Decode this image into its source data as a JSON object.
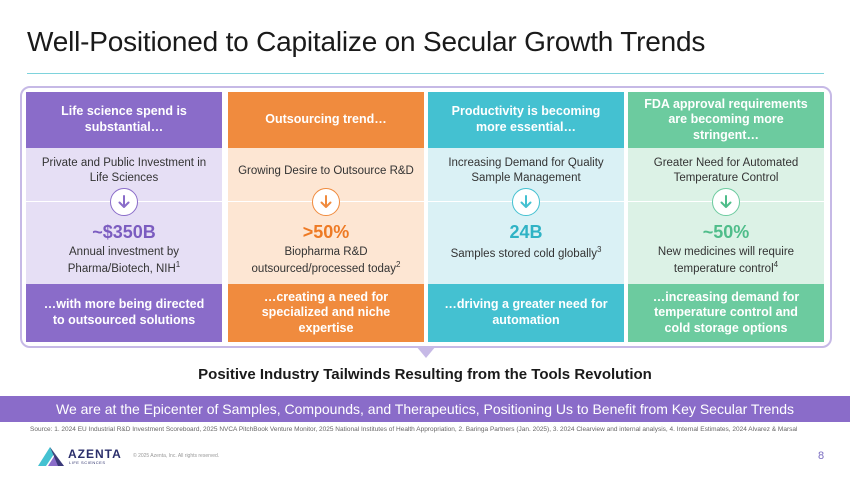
{
  "title": "Well-Positioned to Capitalize on Secular Growth Trends",
  "columns": [
    {
      "header": "Life science spend is substantial…",
      "subtitle": "Private and Public Investment in Life Sciences",
      "stat": "~$350B",
      "stat_desc": "Annual investment by Pharma/Biotech, NIH",
      "footnote": "1",
      "footer": "…with more being directed to outsourced solutions",
      "accent": "#8a6cc9",
      "light": "#e6dff5"
    },
    {
      "header": "Outsourcing trend…",
      "subtitle": "Growing Desire to Outsource R&D",
      "stat": ">50%",
      "stat_desc": "Biopharma R&D outsourced/processed today",
      "footnote": "2",
      "footer": "…creating a need for specialized and niche expertise",
      "accent": "#f08b3e",
      "light": "#fde6d3"
    },
    {
      "header": "Productivity is becoming more essential…",
      "subtitle": "Increasing Demand for Quality Sample Management",
      "stat": "24B",
      "stat_desc": "Samples stored cold globally",
      "footnote": "3",
      "footer": "…driving a greater need for automation",
      "accent": "#44c1d1",
      "light": "#daf1f5"
    },
    {
      "header": "FDA approval requirements are becoming more stringent…",
      "subtitle": "Greater Need for Automated Temperature Control",
      "stat": "~50%",
      "stat_desc": "New medicines will require temperature control",
      "footnote": "4",
      "footer": "…increasing demand for temperature control and cold storage options",
      "accent": "#6ccb9f",
      "light": "#dcf2e6"
    }
  ],
  "tagline": "Positive Industry Tailwinds Resulting from the Tools Revolution",
  "banner": "We are at the Epicenter of Samples, Compounds, and Therapeutics, Positioning Us to Benefit from Key Secular Trends",
  "source": "Source: 1. 2024 EU Industrial R&D Investment Scoreboard, 2025 NVCA PitchBook Venture Monitor, 2025 National Institutes of Health Appropriation, 2. Baringa Partners (Jan. 2025), 3. 2024 Clearview and internal analysis, 4. Internal Estimates, 2024 Alvarez & Marsal",
  "logo": {
    "name": "AZENTA",
    "sub": "LIFE SCIENCES"
  },
  "copyright": "© 2025 Azenta, Inc. All rights reserved.",
  "page_number": "8",
  "icons": {
    "arrow": "arrow-down-icon",
    "logo": "azenta-logo-icon"
  }
}
